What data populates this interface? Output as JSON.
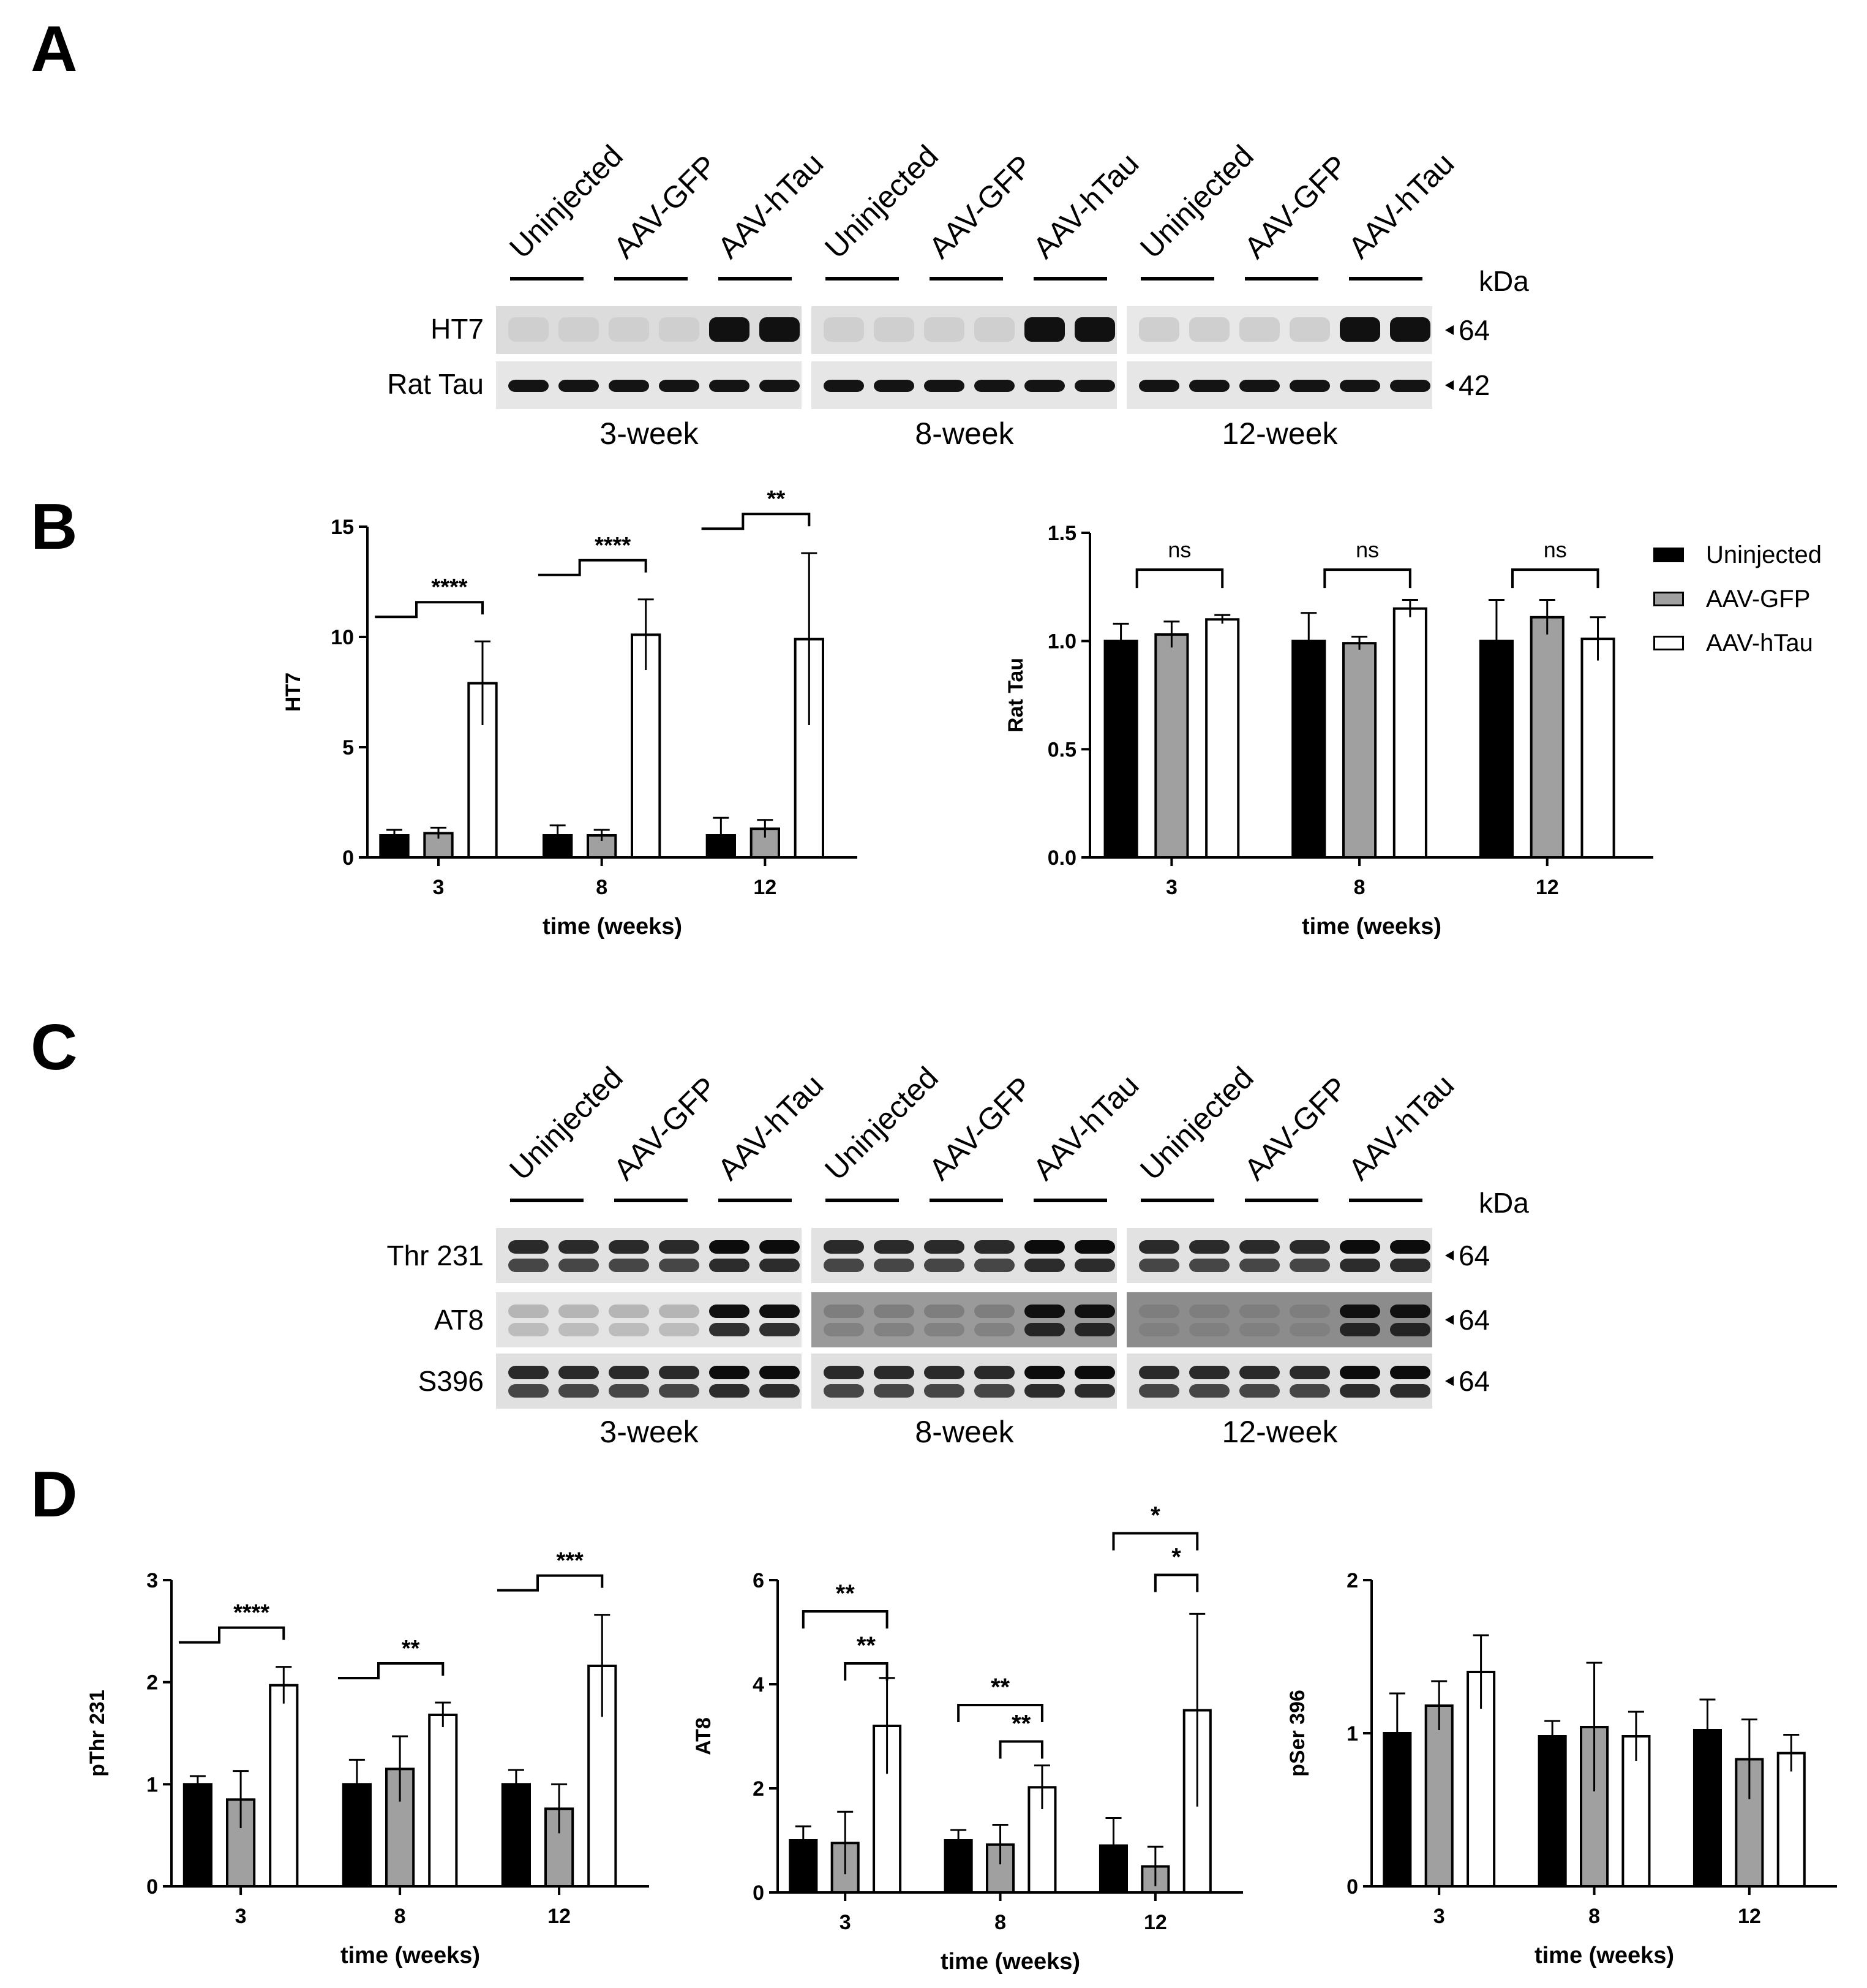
{
  "panels": {
    "a": "A",
    "b": "B",
    "c": "C",
    "d": "D"
  },
  "groups": [
    "Uninjected",
    "AAV-GFP",
    "AAV-hTau"
  ],
  "colors": {
    "Uninjected": "#000000",
    "AAV-GFP": "#a0a0a0",
    "AAV-hTau": "#ffffff"
  },
  "blot_A": {
    "lanes": [
      "Uninjected",
      "AAV-GFP",
      "AAV-hTau",
      "Uninjected",
      "AAV-GFP",
      "AAV-hTau",
      "Uninjected",
      "AAV-GFP",
      "AAV-hTau"
    ],
    "rows": [
      "HT7",
      "Rat Tau"
    ],
    "sizes": [
      "64",
      "42"
    ],
    "kda": "kDa",
    "timepoints": [
      "3-week",
      "8-week",
      "12-week"
    ]
  },
  "blot_C": {
    "lanes": [
      "Uninjected",
      "AAV-GFP",
      "AAV-hTau",
      "Uninjected",
      "AAV-GFP",
      "AAV-hTau",
      "Uninjected",
      "AAV-GFP",
      "AAV-hTau"
    ],
    "rows": [
      "Thr 231",
      "AT8",
      "S396"
    ],
    "sizes": [
      "64",
      "64",
      "64"
    ],
    "kda": "kDa",
    "timepoints": [
      "3-week",
      "8-week",
      "12-week"
    ]
  },
  "legend": {
    "items": [
      "Uninjected",
      "AAV-GFP",
      "AAV-hTau"
    ]
  },
  "chart_data": [
    {
      "id": "B-HT7",
      "type": "bar",
      "categories": [
        "3",
        "8",
        "12"
      ],
      "series": [
        {
          "name": "Uninjected",
          "values": [
            1.0,
            1.0,
            1.0
          ],
          "errors": [
            0.25,
            0.45,
            0.8
          ]
        },
        {
          "name": "AAV-GFP",
          "values": [
            1.1,
            1.0,
            1.3
          ],
          "errors": [
            0.25,
            0.25,
            0.4
          ]
        },
        {
          "name": "AAV-hTau",
          "values": [
            7.9,
            10.1,
            9.9
          ],
          "errors": [
            1.9,
            1.6,
            3.9
          ]
        }
      ],
      "ylabel": "HT7",
      "xlabel": "time (weeks)",
      "ylim": [
        0,
        15
      ],
      "yticks": [
        "0",
        "5",
        "10",
        "15"
      ],
      "significance": [
        "****",
        "****",
        "**"
      ]
    },
    {
      "id": "B-RatTau",
      "type": "bar",
      "categories": [
        "3",
        "8",
        "12"
      ],
      "series": [
        {
          "name": "Uninjected",
          "values": [
            1.0,
            1.0,
            1.0
          ],
          "errors": [
            0.08,
            0.13,
            0.19
          ]
        },
        {
          "name": "AAV-GFP",
          "values": [
            1.03,
            0.99,
            1.11
          ],
          "errors": [
            0.06,
            0.03,
            0.08
          ]
        },
        {
          "name": "AAV-hTau",
          "values": [
            1.1,
            1.15,
            1.01
          ],
          "errors": [
            0.02,
            0.04,
            0.1
          ]
        }
      ],
      "ylabel": "Rat Tau",
      "xlabel": "time (weeks)",
      "ylim": [
        0,
        1.5
      ],
      "yticks": [
        "0.0",
        "0.5",
        "1.0",
        "1.5"
      ],
      "significance": [
        "ns",
        "ns",
        "ns"
      ]
    },
    {
      "id": "D-pThr231",
      "type": "bar",
      "categories": [
        "3",
        "8",
        "12"
      ],
      "series": [
        {
          "name": "Uninjected",
          "values": [
            1.0,
            1.0,
            1.0
          ],
          "errors": [
            0.08,
            0.24,
            0.14
          ]
        },
        {
          "name": "AAV-GFP",
          "values": [
            0.85,
            1.15,
            0.76
          ],
          "errors": [
            0.28,
            0.32,
            0.24
          ]
        },
        {
          "name": "AAV-hTau",
          "values": [
            1.97,
            1.68,
            2.16
          ],
          "errors": [
            0.18,
            0.12,
            0.5
          ]
        }
      ],
      "ylabel": "pThr 231",
      "xlabel": "time (weeks)",
      "ylim": [
        0,
        3
      ],
      "yticks": [
        "0",
        "1",
        "2",
        "3"
      ],
      "significance": [
        "****",
        "**",
        "***"
      ]
    },
    {
      "id": "D-AT8",
      "type": "bar",
      "categories": [
        "3",
        "8",
        "12"
      ],
      "series": [
        {
          "name": "Uninjected",
          "values": [
            1.0,
            1.0,
            0.9
          ],
          "errors": [
            0.27,
            0.2,
            0.53
          ]
        },
        {
          "name": "AAV-GFP",
          "values": [
            0.95,
            0.92,
            0.5
          ],
          "errors": [
            0.6,
            0.38,
            0.38
          ]
        },
        {
          "name": "AAV-hTau",
          "values": [
            3.2,
            2.02,
            3.5
          ],
          "errors": [
            0.92,
            0.42,
            1.85
          ]
        }
      ],
      "ylabel": "AT8",
      "xlabel": "time (weeks)",
      "ylim": [
        0,
        6
      ],
      "yticks": [
        "0",
        "2",
        "4",
        "6"
      ],
      "significance": [
        "**",
        "**",
        "**",
        "**",
        "*",
        "*"
      ]
    },
    {
      "id": "D-pSer396",
      "type": "bar",
      "categories": [
        "3",
        "8",
        "12"
      ],
      "series": [
        {
          "name": "Uninjected",
          "values": [
            1.0,
            0.98,
            1.02
          ],
          "errors": [
            0.26,
            0.1,
            0.2
          ]
        },
        {
          "name": "AAV-GFP",
          "values": [
            1.18,
            1.04,
            0.83
          ],
          "errors": [
            0.16,
            0.42,
            0.26
          ]
        },
        {
          "name": "AAV-hTau",
          "values": [
            1.4,
            0.98,
            0.87
          ],
          "errors": [
            0.24,
            0.16,
            0.12
          ]
        }
      ],
      "ylabel": "pSer 396",
      "xlabel": "time (weeks)",
      "ylim": [
        0,
        2
      ],
      "yticks": [
        "0",
        "1",
        "2"
      ],
      "significance": []
    }
  ]
}
